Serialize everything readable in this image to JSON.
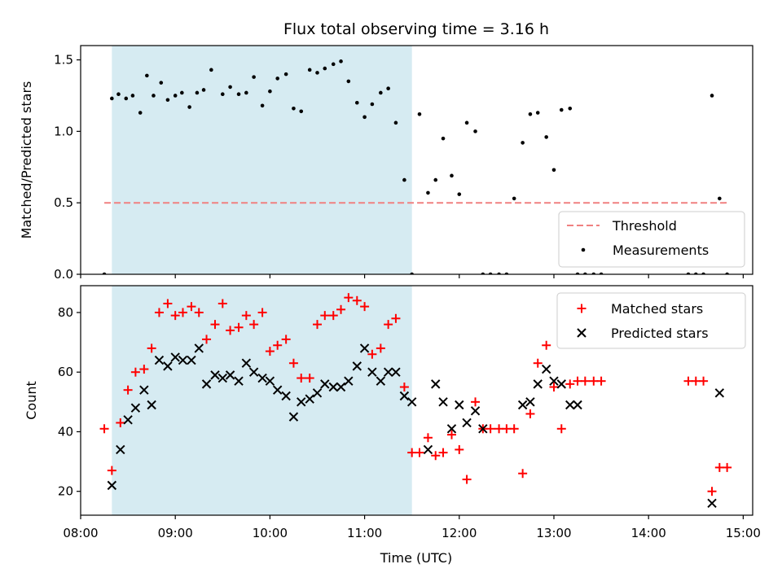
{
  "chart_data": {
    "title": "Flux total observing time = 3.16 h",
    "xlabel": "Time (UTC)",
    "x_unit": "hours (UTC, decimal)",
    "xlim": [
      8.0,
      15.1
    ],
    "x_ticks": [
      8,
      9,
      10,
      11,
      12,
      13,
      14,
      15
    ],
    "x_tick_labels": [
      "08:00",
      "09:00",
      "10:00",
      "11:00",
      "12:00",
      "13:00",
      "14:00",
      "15:00"
    ],
    "highlight_span": [
      8.33,
      11.5
    ],
    "colors": {
      "highlight": "#add8e6",
      "threshold": "#f08080",
      "measurements": "#000000",
      "matched": "#ff0000",
      "predicted": "#000000"
    },
    "panels": [
      {
        "type": "scatter",
        "ylabel": "Matched/Predicted stars",
        "ylim": [
          0,
          1.6
        ],
        "y_ticks": [
          0.0,
          0.5,
          1.0,
          1.5
        ],
        "y_tick_labels": [
          "0.0",
          "0.5",
          "1.0",
          "1.5"
        ],
        "legend_position": "lower-right",
        "threshold": {
          "name": "Threshold",
          "value": 0.5,
          "x_range": [
            8.25,
            14.85
          ]
        },
        "series": [
          {
            "name": "Measurements",
            "marker": "dot",
            "x": [
              8.25,
              8.33,
              8.4,
              8.48,
              8.55,
              8.63,
              8.7,
              8.77,
              8.85,
              8.92,
              9.0,
              9.07,
              9.15,
              9.23,
              9.3,
              9.38,
              9.5,
              9.58,
              9.67,
              9.75,
              9.83,
              9.92,
              10.0,
              10.08,
              10.17,
              10.25,
              10.33,
              10.42,
              10.5,
              10.58,
              10.67,
              10.75,
              10.83,
              10.92,
              11.0,
              11.08,
              11.17,
              11.25,
              11.33,
              11.42,
              11.5,
              11.58,
              11.67,
              11.75,
              11.83,
              11.92,
              12.0,
              12.08,
              12.17,
              12.25,
              12.33,
              12.42,
              12.5,
              12.58,
              12.67,
              12.75,
              12.83,
              12.92,
              13.0,
              13.08,
              13.17,
              13.25,
              13.33,
              13.42,
              13.5,
              14.42,
              14.5,
              14.58,
              14.67,
              14.75,
              14.83
            ],
            "y": [
              0.0,
              1.23,
              1.26,
              1.23,
              1.25,
              1.13,
              1.39,
              1.25,
              1.34,
              1.22,
              1.25,
              1.27,
              1.17,
              1.27,
              1.29,
              1.43,
              1.26,
              1.31,
              1.26,
              1.27,
              1.38,
              1.18,
              1.28,
              1.37,
              1.4,
              1.16,
              1.14,
              1.43,
              1.41,
              1.44,
              1.47,
              1.49,
              1.35,
              1.2,
              1.1,
              1.19,
              1.27,
              1.3,
              1.06,
              0.66,
              0.0,
              1.12,
              0.57,
              0.66,
              0.95,
              0.69,
              0.56,
              1.06,
              1.0,
              0.0,
              0.0,
              0.0,
              0.0,
              0.53,
              0.92,
              1.12,
              1.13,
              0.96,
              0.73,
              1.15,
              1.16,
              0.0,
              0.0,
              0.0,
              0.0,
              0.0,
              0.0,
              0.0,
              1.25,
              0.53,
              0.0
            ]
          }
        ]
      },
      {
        "type": "scatter",
        "ylabel": "Count",
        "ylim": [
          12,
          89
        ],
        "y_ticks": [
          20,
          40,
          60,
          80
        ],
        "y_tick_labels": [
          "20",
          "40",
          "60",
          "80"
        ],
        "legend_position": "top-right",
        "series": [
          {
            "name": "Matched stars",
            "marker": "plus",
            "x": [
              8.25,
              8.33,
              8.42,
              8.5,
              8.58,
              8.67,
              8.75,
              8.83,
              8.92,
              9.0,
              9.08,
              9.17,
              9.25,
              9.33,
              9.42,
              9.5,
              9.58,
              9.67,
              9.75,
              9.83,
              9.92,
              10.0,
              10.08,
              10.17,
              10.25,
              10.33,
              10.42,
              10.5,
              10.58,
              10.67,
              10.75,
              10.83,
              10.92,
              11.0,
              11.08,
              11.17,
              11.25,
              11.33,
              11.42,
              11.5,
              11.58,
              11.67,
              11.75,
              11.83,
              11.92,
              12.0,
              12.08,
              12.17,
              12.25,
              12.33,
              12.42,
              12.5,
              12.58,
              12.67,
              12.75,
              12.83,
              12.92,
              13.0,
              13.08,
              13.17,
              13.25,
              13.33,
              13.42,
              13.5,
              14.42,
              14.5,
              14.58,
              14.67,
              14.75,
              14.83
            ],
            "y": [
              41,
              27,
              43,
              54,
              60,
              61,
              68,
              80,
              83,
              79,
              80,
              82,
              80,
              71,
              76,
              83,
              74,
              75,
              79,
              76,
              80,
              67,
              69,
              71,
              63,
              58,
              58,
              76,
              79,
              79,
              81,
              85,
              84,
              82,
              66,
              68,
              76,
              78,
              55,
              33,
              33,
              38,
              32,
              33,
              39,
              34,
              24,
              50,
              41,
              41,
              41,
              41,
              41,
              26,
              46,
              63,
              69,
              55,
              41,
              56,
              57,
              57,
              57,
              57,
              57,
              57,
              57,
              20,
              28,
              28
            ]
          },
          {
            "name": "Predicted stars",
            "marker": "x",
            "x": [
              8.33,
              8.42,
              8.5,
              8.58,
              8.67,
              8.75,
              8.83,
              8.92,
              9.0,
              9.08,
              9.17,
              9.25,
              9.33,
              9.42,
              9.5,
              9.58,
              9.67,
              9.75,
              9.83,
              9.92,
              10.0,
              10.08,
              10.17,
              10.25,
              10.33,
              10.42,
              10.5,
              10.58,
              10.67,
              10.75,
              10.83,
              10.92,
              11.0,
              11.08,
              11.17,
              11.25,
              11.33,
              11.42,
              11.5,
              11.67,
              11.75,
              11.83,
              11.92,
              12.0,
              12.08,
              12.17,
              12.25,
              12.67,
              12.75,
              12.83,
              12.92,
              13.0,
              13.08,
              13.17,
              13.25,
              14.67,
              14.75
            ],
            "y": [
              22,
              34,
              44,
              48,
              54,
              49,
              64,
              62,
              65,
              64,
              64,
              68,
              56,
              59,
              58,
              59,
              57,
              63,
              60,
              58,
              57,
              54,
              52,
              45,
              50,
              51,
              53,
              56,
              55,
              55,
              57,
              62,
              68,
              60,
              57,
              60,
              60,
              52,
              50,
              34,
              56,
              50,
              41,
              49,
              43,
              47,
              41,
              49,
              50,
              56,
              61,
              57,
              56,
              49,
              49,
              16,
              53
            ]
          }
        ]
      }
    ]
  }
}
